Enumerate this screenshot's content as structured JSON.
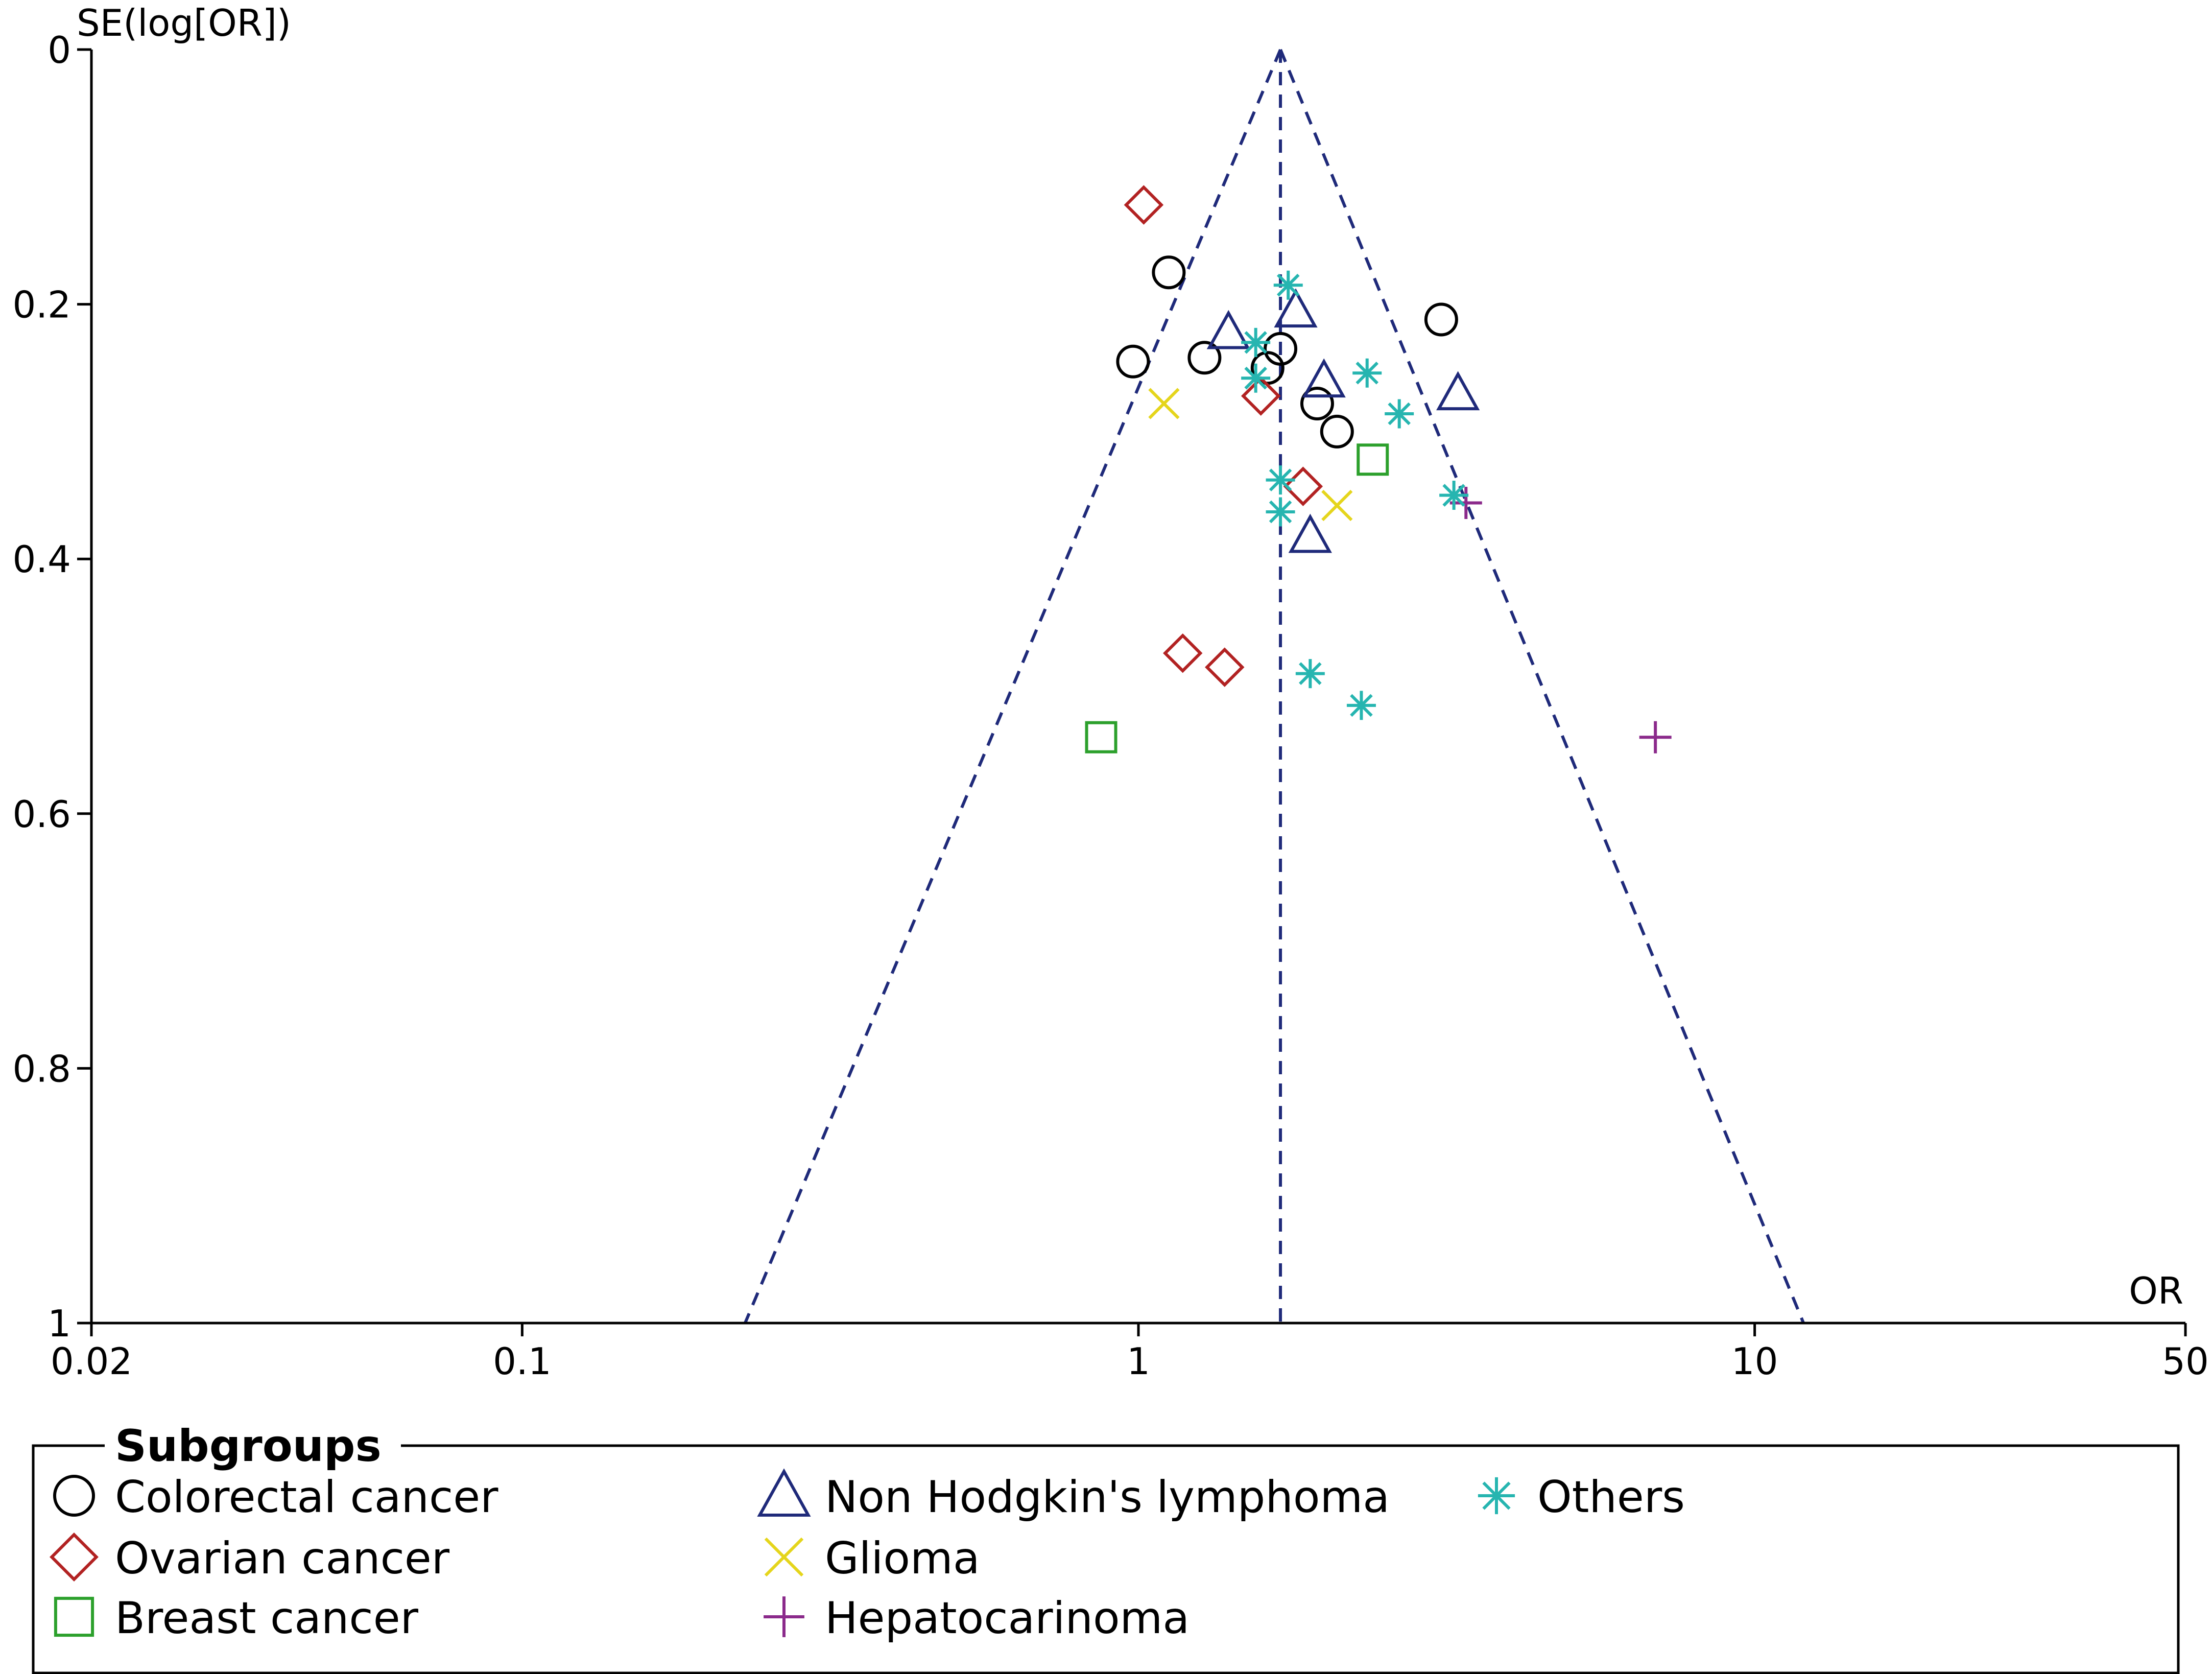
{
  "chart_data": {
    "type": "scatter",
    "subtype": "funnel-plot",
    "title": "",
    "xlabel": "OR",
    "ylabel": "SE(log[OR])",
    "xscale": "log",
    "xlim": [
      0.02,
      50
    ],
    "ylim": [
      0,
      1
    ],
    "y_inverted": true,
    "xticks": [
      0.02,
      0.1,
      1,
      10,
      50
    ],
    "xtick_labels": [
      "0.02",
      "0.1",
      "1",
      "10",
      "50"
    ],
    "yticks": [
      0,
      0.2,
      0.4,
      0.6,
      0.8,
      1
    ],
    "ytick_labels": [
      "0",
      "0.2",
      "0.4",
      "0.6",
      "0.8",
      "1"
    ],
    "funnel": {
      "center_or": 1.7,
      "apex_se": 0,
      "base_se": 1,
      "lower_or_at_base": 0.23,
      "upper_or_at_base": 12.0,
      "line_color": "#1f2a7a",
      "line_style": "dashed"
    },
    "legend": {
      "title": "Subgroups",
      "position": "bottom"
    },
    "series": [
      {
        "name": "Colorectal cancer",
        "marker": "circle",
        "color": "#000000",
        "points": [
          {
            "x": 1.12,
            "y": 0.175
          },
          {
            "x": 0.98,
            "y": 0.245
          },
          {
            "x": 1.28,
            "y": 0.242
          },
          {
            "x": 1.62,
            "y": 0.25
          },
          {
            "x": 1.7,
            "y": 0.235
          },
          {
            "x": 1.95,
            "y": 0.278
          },
          {
            "x": 2.1,
            "y": 0.3
          },
          {
            "x": 3.1,
            "y": 0.212
          }
        ]
      },
      {
        "name": "Ovarian cancer",
        "marker": "diamond",
        "color": "#b22222",
        "points": [
          {
            "x": 1.02,
            "y": 0.122
          },
          {
            "x": 1.58,
            "y": 0.272
          },
          {
            "x": 1.85,
            "y": 0.343
          },
          {
            "x": 1.18,
            "y": 0.474
          },
          {
            "x": 1.38,
            "y": 0.485
          }
        ]
      },
      {
        "name": "Breast cancer",
        "marker": "square",
        "color": "#2ca02c",
        "points": [
          {
            "x": 2.4,
            "y": 0.322
          },
          {
            "x": 0.87,
            "y": 0.54
          }
        ]
      },
      {
        "name": "Non Hodgkin's lymphoma",
        "marker": "triangle",
        "color": "#1f2a7a",
        "points": [
          {
            "x": 1.4,
            "y": 0.222
          },
          {
            "x": 1.8,
            "y": 0.205
          },
          {
            "x": 2.0,
            "y": 0.26
          },
          {
            "x": 3.3,
            "y": 0.27
          },
          {
            "x": 1.9,
            "y": 0.382
          }
        ]
      },
      {
        "name": "Glioma",
        "marker": "x",
        "color": "#e5d51c",
        "points": [
          {
            "x": 1.1,
            "y": 0.278
          },
          {
            "x": 2.1,
            "y": 0.358
          }
        ]
      },
      {
        "name": "Hepatocarinoma",
        "marker": "plus",
        "color": "#8b2a8b",
        "points": [
          {
            "x": 3.4,
            "y": 0.356
          },
          {
            "x": 6.9,
            "y": 0.54
          }
        ]
      },
      {
        "name": "Others",
        "marker": "asterisk",
        "color": "#26b5b0",
        "points": [
          {
            "x": 1.75,
            "y": 0.185
          },
          {
            "x": 1.55,
            "y": 0.23
          },
          {
            "x": 1.55,
            "y": 0.258
          },
          {
            "x": 2.35,
            "y": 0.254
          },
          {
            "x": 2.65,
            "y": 0.286
          },
          {
            "x": 1.7,
            "y": 0.338
          },
          {
            "x": 1.7,
            "y": 0.363
          },
          {
            "x": 3.25,
            "y": 0.35
          },
          {
            "x": 1.9,
            "y": 0.49
          },
          {
            "x": 2.3,
            "y": 0.515
          }
        ]
      }
    ]
  }
}
